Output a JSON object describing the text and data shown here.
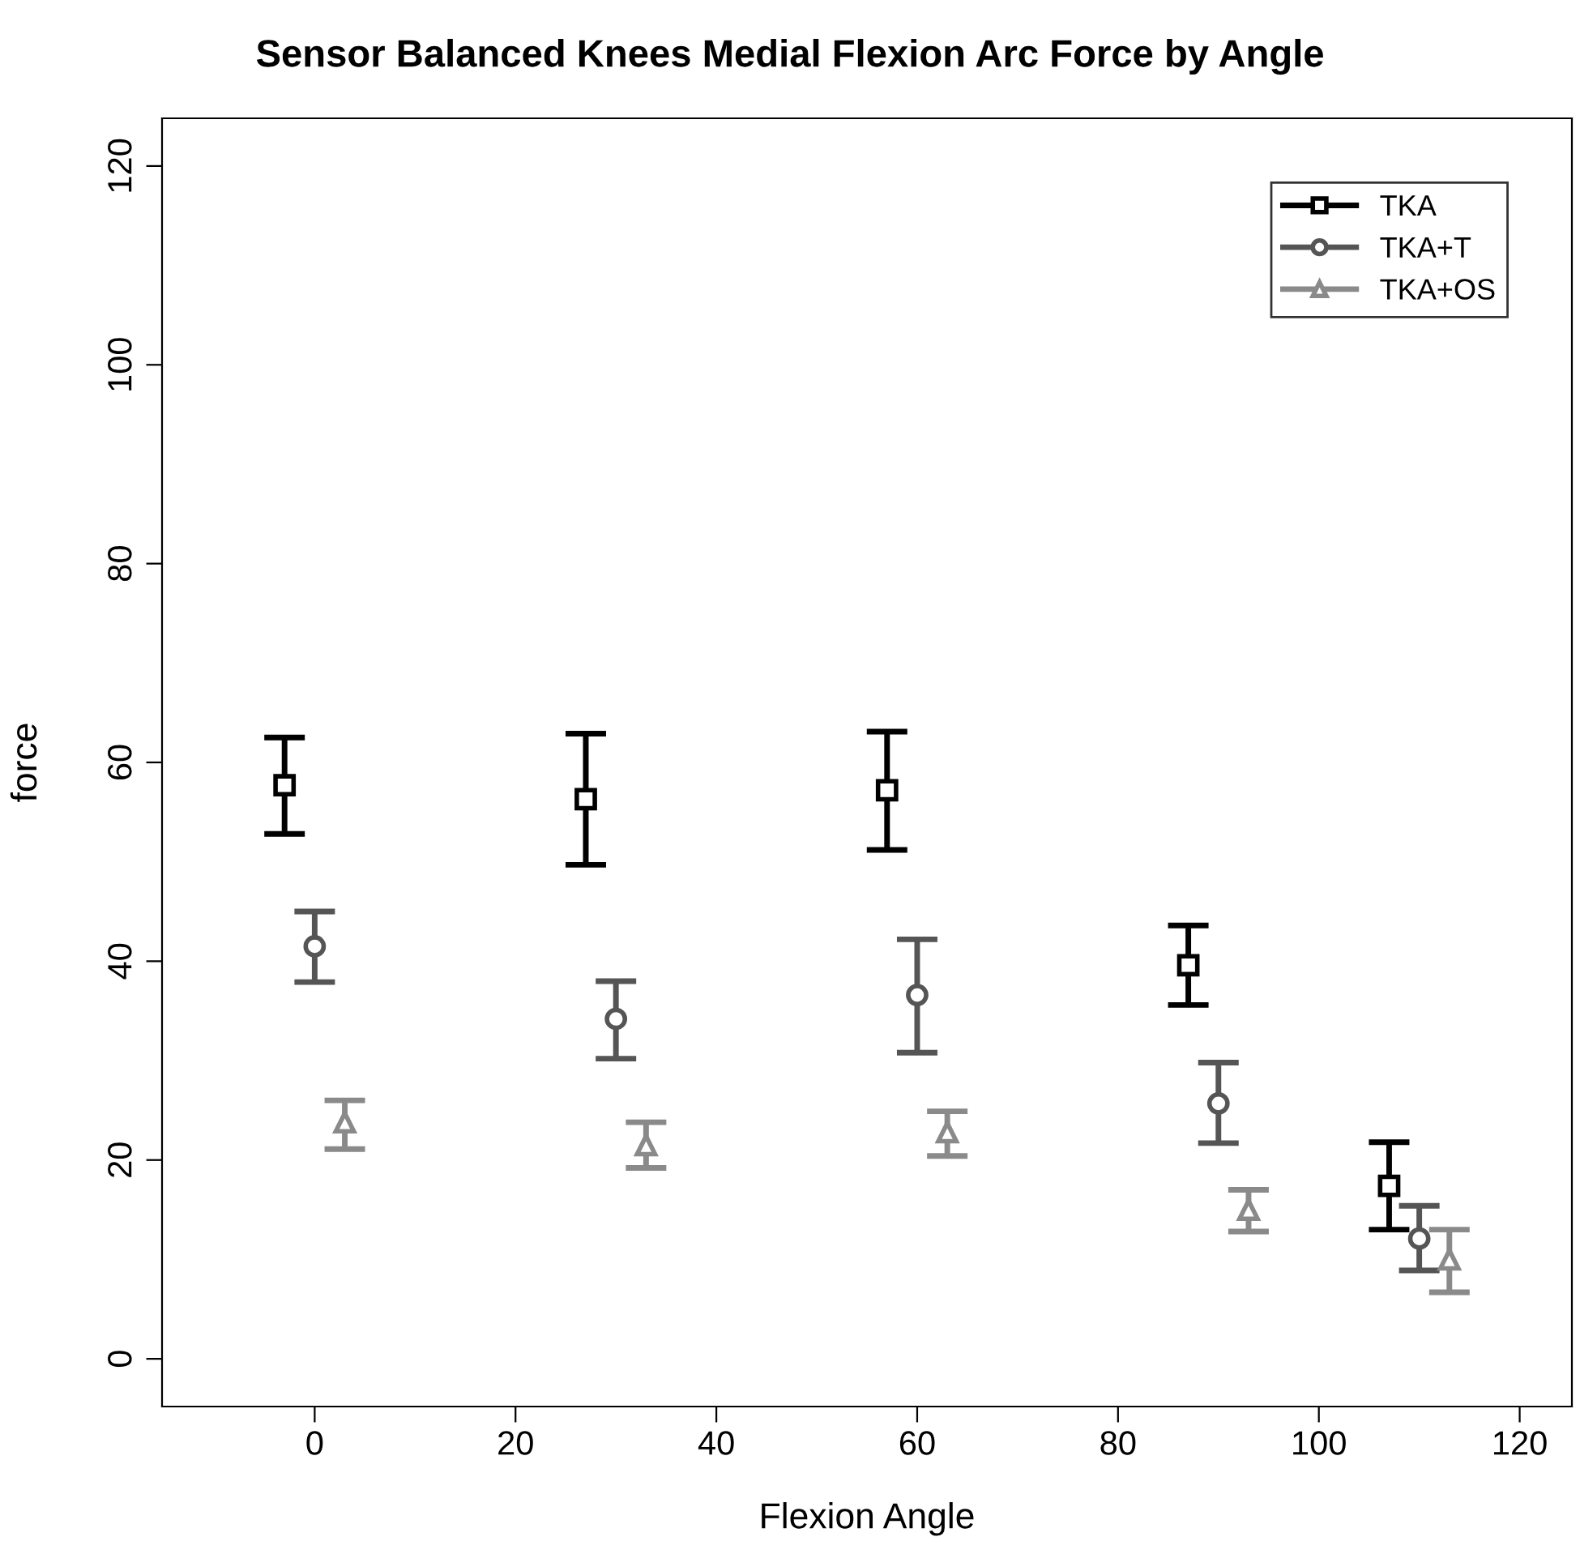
{
  "chart_data": {
    "type": "scatter",
    "title": "Sensor Balanced Knees Medial Flexion Arc Force by Angle",
    "xlabel": "Flexion Angle",
    "ylabel": "force",
    "xlim": [
      -15.2,
      125.2
    ],
    "ylim": [
      -4.8,
      124.8
    ],
    "xticks": [
      0,
      20,
      40,
      60,
      80,
      100,
      120
    ],
    "yticks": [
      0,
      20,
      40,
      60,
      80,
      100,
      120
    ],
    "grid": false,
    "legend": "top right",
    "series": [
      {
        "name": "TKA",
        "color": "#000000",
        "marker": "square",
        "x": [
          -3,
          27,
          57,
          87,
          107
        ],
        "values": [
          57.7,
          56.3,
          57.2,
          39.6,
          17.4
        ],
        "errors": [
          [
            52.8,
            62.5
          ],
          [
            49.7,
            62.9
          ],
          [
            51.2,
            63.1
          ],
          [
            35.6,
            43.6
          ],
          [
            13.0,
            21.8
          ]
        ]
      },
      {
        "name": "TKA+T",
        "color": "#555555",
        "marker": "circle",
        "x": [
          0,
          30,
          60,
          90,
          110
        ],
        "values": [
          41.5,
          34.2,
          36.6,
          25.7,
          12.1
        ],
        "errors": [
          [
            37.9,
            45.0
          ],
          [
            30.2,
            38.0
          ],
          [
            30.8,
            42.2
          ],
          [
            21.7,
            29.8
          ],
          [
            8.9,
            15.4
          ]
        ]
      },
      {
        "name": "TKA+OS",
        "color": "#8a8a8a",
        "marker": "triangle",
        "x": [
          3,
          33,
          63,
          93,
          113
        ],
        "values": [
          23.8,
          21.5,
          22.8,
          15.0,
          10.0
        ],
        "errors": [
          [
            21.1,
            26.0
          ],
          [
            19.2,
            23.8
          ],
          [
            20.4,
            24.9
          ],
          [
            12.8,
            17.0
          ],
          [
            6.7,
            13.0
          ]
        ]
      }
    ]
  }
}
